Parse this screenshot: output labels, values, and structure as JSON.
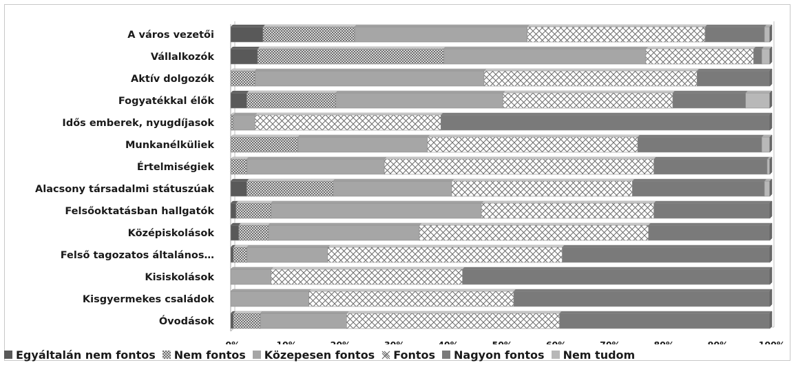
{
  "chart_data": {
    "type": "bar",
    "orientation": "horizontal",
    "stacked": "percent",
    "categories": [
      "A város vezetői",
      "Vállalkozók",
      "Aktív dolgozók",
      "Fogyatékkal élők",
      "Idős emberek, nyugdíjasok",
      "Munkanélküliek",
      "Értelmiségiek",
      "Alacsony társadalmi státuszúak",
      "Felsőoktatásban hallgatók",
      "Középiskolások",
      "Felső tagozatos általános…",
      "Kisiskolások",
      "Kisgyermekes családok",
      "Óvodások"
    ],
    "series": [
      {
        "name": "Egyáltalán nem fontos",
        "color": "#595959",
        "pattern": "solid",
        "values": [
          6,
          5,
          0,
          3,
          0,
          0,
          0,
          3,
          1,
          1.5,
          0.5,
          0,
          0,
          0.5
        ]
      },
      {
        "name": "Nem fontos",
        "color": "#9a9a9a",
        "pattern": "dots",
        "values": [
          17,
          34.5,
          4.5,
          16.5,
          0.5,
          12.5,
          3,
          16,
          6.5,
          5.5,
          2.5,
          0,
          0,
          5
        ]
      },
      {
        "name": "Közepesen fontos",
        "color": "#a6a6a6",
        "pattern": "solid",
        "values": [
          32,
          37.5,
          42.5,
          31,
          4,
          24,
          25.5,
          22,
          39,
          28,
          15,
          7.5,
          14.5,
          16
        ]
      },
      {
        "name": "Fontos",
        "color": "#ffffff",
        "pattern": "crosshatch",
        "values": [
          33,
          20,
          39.5,
          31.5,
          34.5,
          39,
          50,
          33.5,
          32,
          42.5,
          43.5,
          35.5,
          38,
          39.5
        ]
      },
      {
        "name": "Nagyon fontos",
        "color": "#7a7a7a",
        "pattern": "solid",
        "values": [
          11,
          1.5,
          13.5,
          13.5,
          61,
          23,
          21,
          24.5,
          21.5,
          22.5,
          38.5,
          57,
          47.5,
          39
        ]
      },
      {
        "name": "Nem tudom",
        "color": "#b8b8b8",
        "pattern": "solid",
        "values": [
          1,
          1.5,
          0,
          4.5,
          0,
          1.5,
          0.5,
          1,
          0,
          0,
          0,
          0,
          0,
          0
        ]
      }
    ],
    "xaxis": {
      "ticks": [
        "0%",
        "10%",
        "20%",
        "30%",
        "40%",
        "50%",
        "60%",
        "70%",
        "80%",
        "90%",
        "100%"
      ],
      "range": [
        0,
        100
      ]
    },
    "legend_position": "bottom",
    "grid": false,
    "title": "",
    "xlabel": "",
    "ylabel": ""
  }
}
